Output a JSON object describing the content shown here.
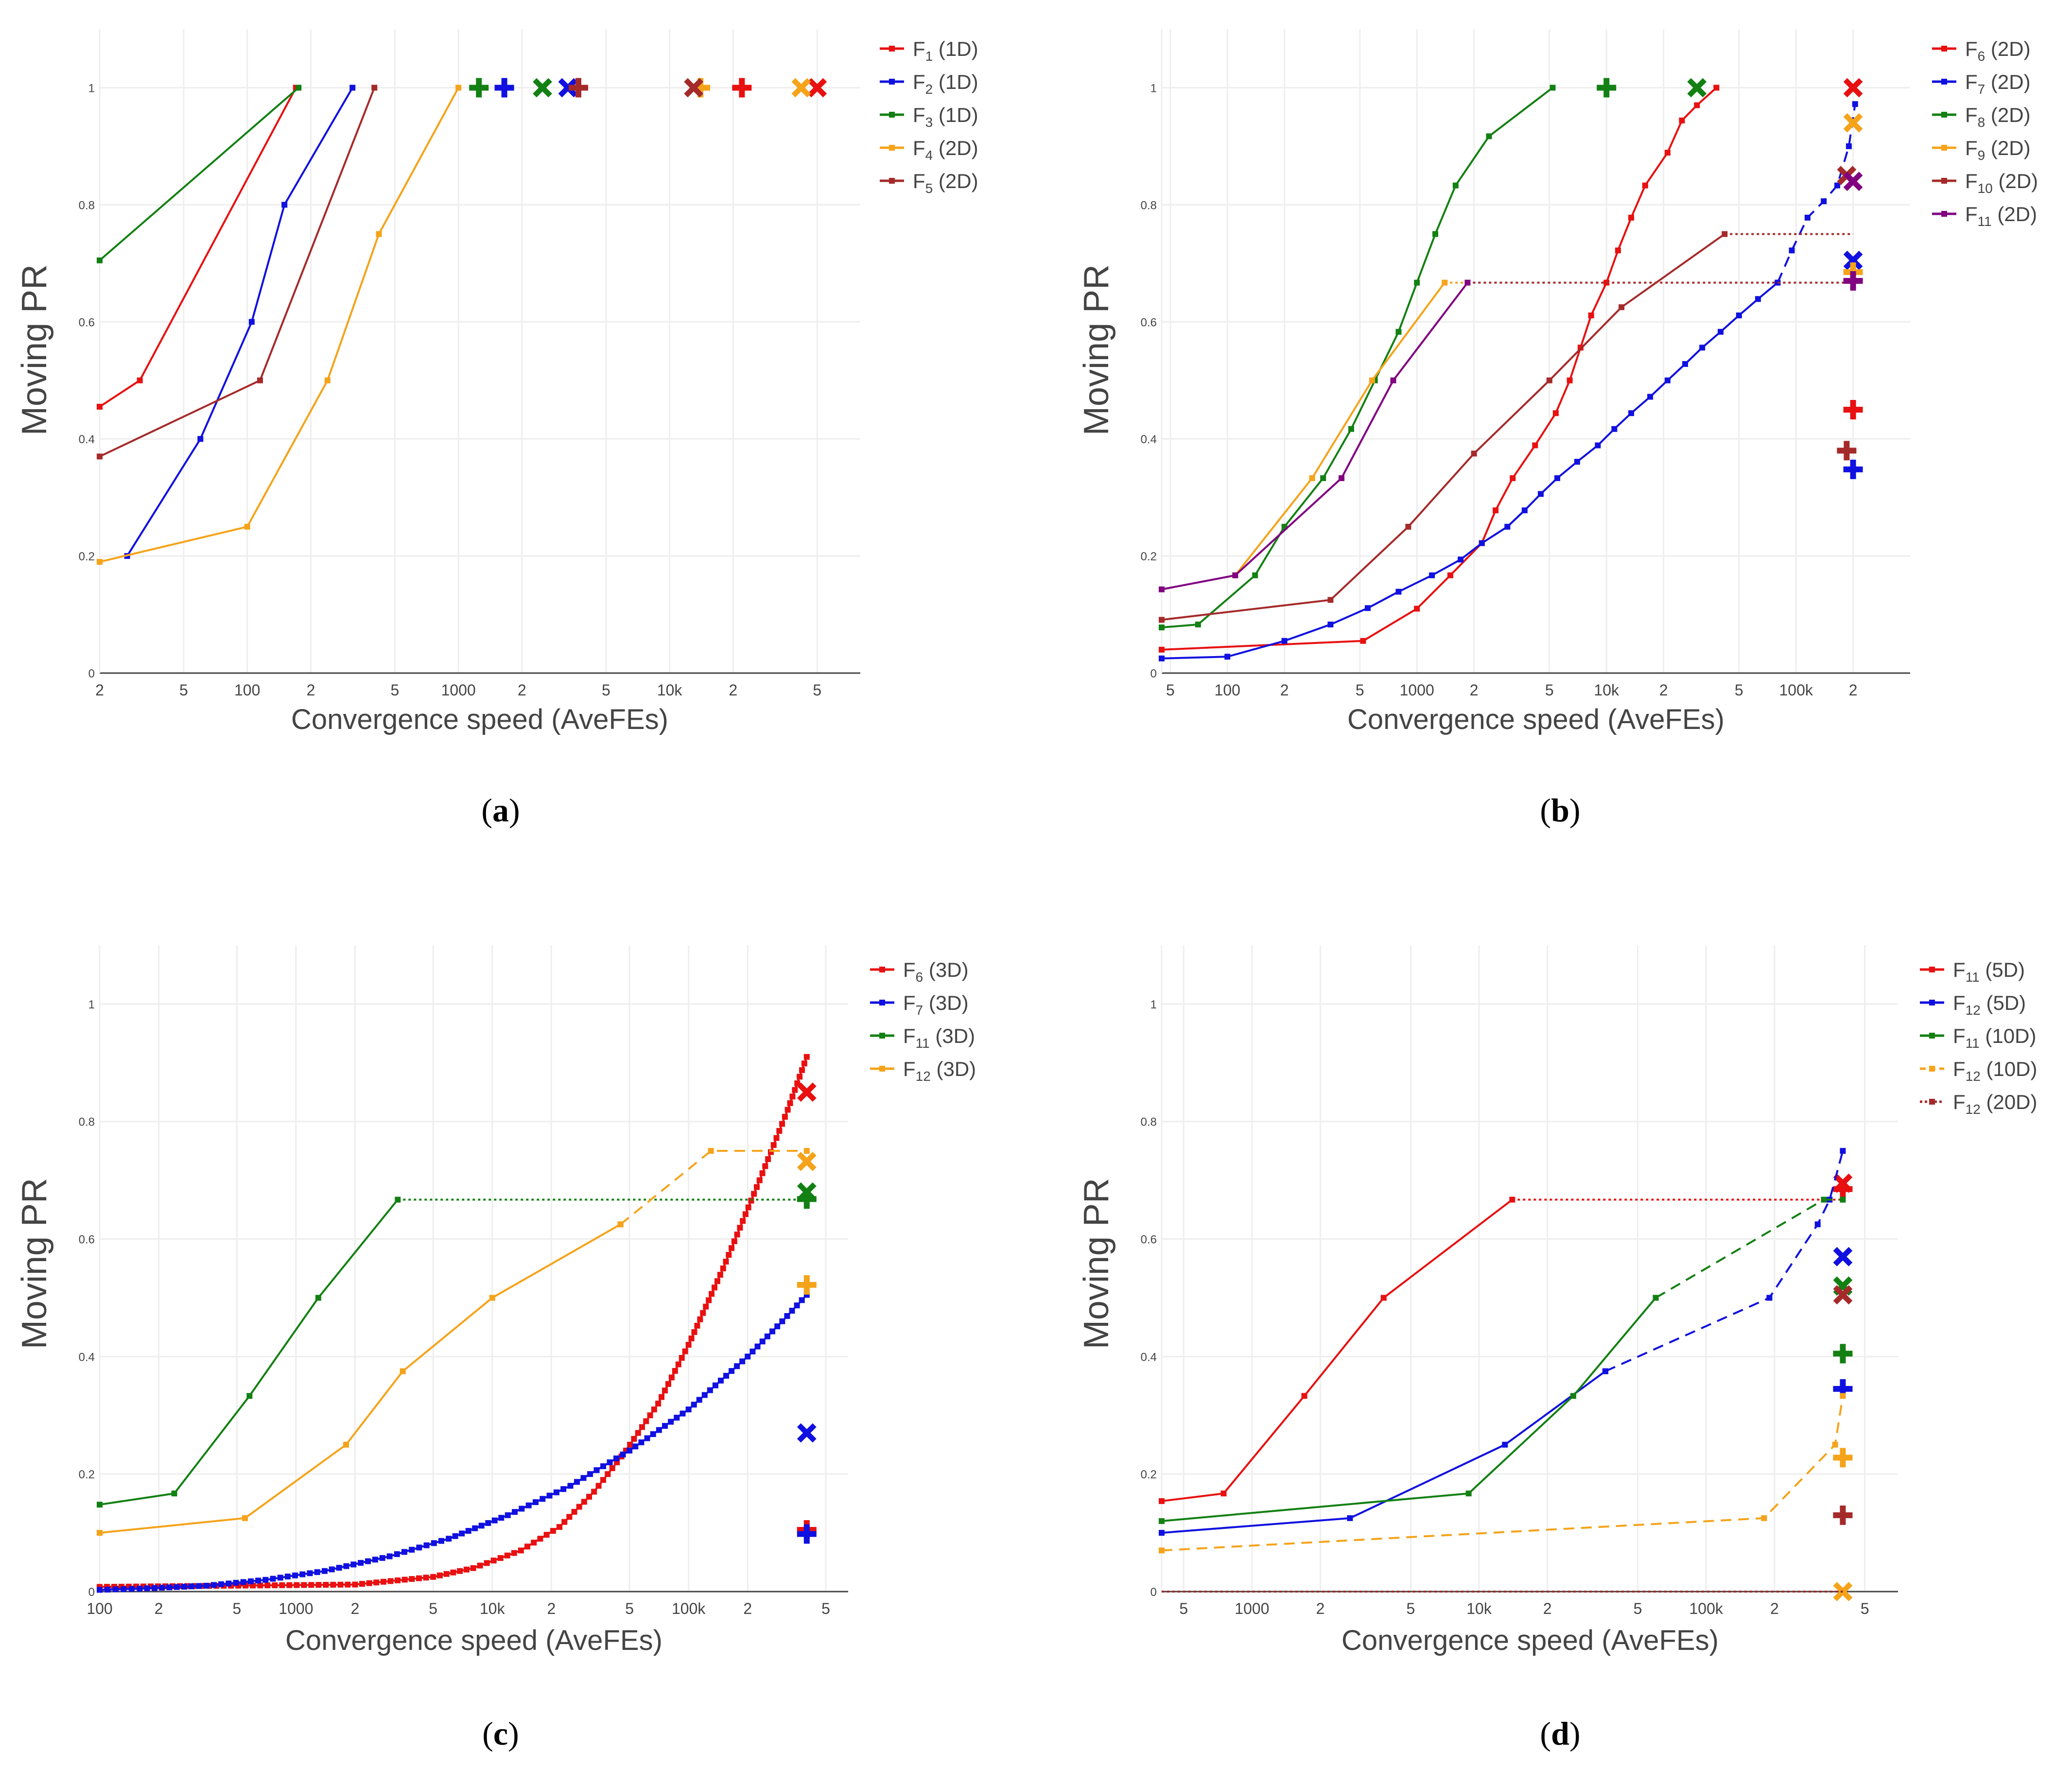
{
  "chart_data": [
    {
      "panel": "(a)",
      "type": "line",
      "xlabel": "Convergence speed (AveFEs)",
      "ylabel": "Moving PR",
      "xscale": "log",
      "xlim": [
        20,
        80000
      ],
      "ylim": [
        0,
        1.1
      ],
      "yticks": [
        "0",
        "0.2",
        "0.4",
        "0.6",
        "0.8",
        "1"
      ],
      "xticks": [
        {
          "v": 20,
          "label": "2"
        },
        {
          "v": 50,
          "label": "5"
        },
        {
          "v": 100,
          "label": "100"
        },
        {
          "v": 200,
          "label": "2"
        },
        {
          "v": 500,
          "label": "5"
        },
        {
          "v": 1000,
          "label": "1000"
        },
        {
          "v": 2000,
          "label": "2"
        },
        {
          "v": 5000,
          "label": "5"
        },
        {
          "v": 10000,
          "label": "10k"
        },
        {
          "v": 20000,
          "label": "2"
        },
        {
          "v": 50000,
          "label": "5"
        }
      ],
      "legend_position": "top-right",
      "series": [
        {
          "name": "F",
          "sub": "1",
          "tag": "(1D)",
          "color": "#e81010",
          "dash": "solid",
          "x": [
            20,
            31,
            170
          ],
          "y": [
            0.455,
            0.5,
            1.0
          ],
          "x_marker": 50000,
          "x_marker_y": 1.0,
          "plus_marker": 22000,
          "plus_marker_y": 1.0
        },
        {
          "name": "F",
          "sub": "2",
          "tag": "(1D)",
          "color": "#1010e0",
          "dash": "solid",
          "x": [
            27,
            60,
            105,
            150,
            315
          ],
          "y": [
            0.2,
            0.4,
            0.6,
            0.8,
            1.0
          ],
          "x_marker": 3300,
          "x_marker_y": 1.0,
          "plus_marker": 1650,
          "plus_marker_y": 1.0
        },
        {
          "name": "F",
          "sub": "3",
          "tag": "(1D)",
          "color": "#138013",
          "dash": "solid",
          "x": [
            20,
            175
          ],
          "y": [
            0.705,
            1.0
          ],
          "x_marker": 2500,
          "x_marker_y": 1.0,
          "plus_marker": 1250,
          "plus_marker_y": 1.0
        },
        {
          "name": "F",
          "sub": "4",
          "tag": "(2D)",
          "color": "#f5a31a",
          "dash": "solid",
          "x": [
            20,
            100,
            240,
            420,
            1000
          ],
          "y": [
            0.19,
            0.25,
            0.5,
            0.75,
            1.0
          ],
          "x_marker": 42000,
          "x_marker_y": 1.0,
          "plus_marker": 14000,
          "plus_marker_y": 1.0
        },
        {
          "name": "F",
          "sub": "5",
          "tag": "(2D)",
          "color": "#a52a2a",
          "dash": "solid",
          "x": [
            20,
            115,
            400
          ],
          "y": [
            0.37,
            0.5,
            1.0
          ],
          "x_marker": 13000,
          "x_marker_y": 1.0,
          "plus_marker": 3700,
          "plus_marker_y": 1.0
        }
      ]
    },
    {
      "panel": "(b)",
      "type": "line",
      "xlabel": "Convergence speed (AveFEs)",
      "ylabel": "Moving PR",
      "xscale": "log",
      "xlim": [
        45,
        400000
      ],
      "ylim": [
        0,
        1.1
      ],
      "yticks": [
        "0",
        "0.2",
        "0.4",
        "0.6",
        "0.8",
        "1"
      ],
      "xticks": [
        {
          "v": 50,
          "label": "5"
        },
        {
          "v": 100,
          "label": "100"
        },
        {
          "v": 200,
          "label": "2"
        },
        {
          "v": 500,
          "label": "5"
        },
        {
          "v": 1000,
          "label": "1000"
        },
        {
          "v": 2000,
          "label": "2"
        },
        {
          "v": 5000,
          "label": "5"
        },
        {
          "v": 10000,
          "label": "10k"
        },
        {
          "v": 20000,
          "label": "2"
        },
        {
          "v": 50000,
          "label": "5"
        },
        {
          "v": 100000,
          "label": "100k"
        },
        {
          "v": 200000,
          "label": "2"
        }
      ],
      "legend_position": "top-right",
      "series": [
        {
          "name": "F",
          "sub": "6",
          "tag": "(2D)",
          "color": "#e81010",
          "dash": "solid",
          "x": [
            45,
            520,
            1000,
            1500,
            2200,
            2600,
            3200,
            4200,
            5400,
            6400,
            7300,
            8300,
            10000,
            11500,
            13500,
            16000,
            21000,
            25000,
            30000,
            38000
          ],
          "y": [
            0.04,
            0.055,
            0.11,
            0.167,
            0.222,
            0.278,
            0.333,
            0.389,
            0.444,
            0.5,
            0.556,
            0.611,
            0.667,
            0.722,
            0.778,
            0.833,
            0.889,
            0.944,
            0.97,
            1.0
          ],
          "x_marker": 200000,
          "x_marker_y": 1.0,
          "plus_marker": 200000,
          "plus_marker_y": 0.45
        },
        {
          "name": "F",
          "sub": "7",
          "tag": "(2D)",
          "color": "#1010e0",
          "dash": "solid",
          "x": [
            45,
            100,
            200,
            350,
            550,
            800,
            1200,
            1700,
            2200,
            3000,
            3700,
            4500,
            5500,
            7000,
            9000,
            11000,
            13500,
            17000,
            21000,
            26000,
            32000,
            40000,
            50000,
            63000,
            80000
          ],
          "y": [
            0.025,
            0.028,
            0.055,
            0.083,
            0.111,
            0.139,
            0.167,
            0.194,
            0.222,
            0.25,
            0.278,
            0.306,
            0.333,
            0.361,
            0.389,
            0.417,
            0.444,
            0.472,
            0.5,
            0.528,
            0.556,
            0.583,
            0.611,
            0.639,
            0.667
          ],
          "ext_x": [
            80000,
            95000,
            115000,
            140000,
            165000,
            190000,
            205000
          ],
          "ext_y": [
            0.667,
            0.722,
            0.778,
            0.806,
            0.833,
            0.9,
            0.972
          ],
          "x_marker": 200000,
          "x_marker_y": 0.705,
          "plus_marker": 200000,
          "plus_marker_y": 0.348
        },
        {
          "name": "F",
          "sub": "8",
          "tag": "(2D)",
          "color": "#138013",
          "dash": "solid",
          "x": [
            45,
            70,
            140,
            200,
            320,
            450,
            600,
            800,
            1000,
            1250,
            1600,
            2400,
            5200
          ],
          "y": [
            0.078,
            0.083,
            0.167,
            0.25,
            0.333,
            0.417,
            0.5,
            0.583,
            0.667,
            0.75,
            0.833,
            0.917,
            1.0
          ],
          "x_marker": 30000,
          "x_marker_y": 1.0,
          "plus_marker": 10000,
          "plus_marker_y": 1.0
        },
        {
          "name": "F",
          "sub": "9",
          "tag": "(2D)",
          "color": "#f5a31a",
          "dash": "solid",
          "x": [
            110,
            280,
            580,
            1400
          ],
          "y": [
            0.167,
            0.333,
            0.5,
            0.667
          ],
          "ext_x": [
            1400,
            1850
          ],
          "ext_y": [
            0.667,
            0.667
          ],
          "x_marker": 200000,
          "x_marker_y": 0.94,
          "plus_marker": 200000,
          "plus_marker_y": 0.685
        },
        {
          "name": "F",
          "sub": "10",
          "tag": "(2D)",
          "color": "#a52a2a",
          "dash": "solid",
          "x": [
            45,
            350,
            900,
            2000,
            5000,
            12000,
            42000
          ],
          "y": [
            0.091,
            0.125,
            0.25,
            0.375,
            0.5,
            0.625,
            0.75
          ],
          "ext_x": [
            42000,
            200000
          ],
          "ext_y": [
            0.75,
            0.75
          ],
          "ext2_x": [
            1850,
            200000
          ],
          "ext2_y": [
            0.667,
            0.667
          ],
          "x_marker": 185000,
          "x_marker_y": 0.85,
          "plus_marker": 185000,
          "plus_marker_y": 0.38
        },
        {
          "name": "F",
          "sub": "11",
          "tag": "(2D)",
          "color": "#800080",
          "dash": "solid",
          "x": [
            45,
            110,
            400,
            750,
            1850
          ],
          "y": [
            0.143,
            0.167,
            0.333,
            0.5,
            0.667
          ],
          "x_marker": 200000,
          "x_marker_y": 0.84,
          "plus_marker": 200000,
          "plus_marker_y": 0.67
        }
      ]
    },
    {
      "panel": "(c)",
      "type": "line",
      "xlabel": "Convergence speed (AveFEs)",
      "ylabel": "Moving PR",
      "xscale": "log",
      "xlim": [
        100,
        650000
      ],
      "ylim": [
        0,
        1.1
      ],
      "yticks": [
        "0",
        "0.2",
        "0.4",
        "0.6",
        "0.8",
        "1"
      ],
      "xticks": [
        {
          "v": 100,
          "label": "100"
        },
        {
          "v": 200,
          "label": "2"
        },
        {
          "v": 500,
          "label": "5"
        },
        {
          "v": 1000,
          "label": "1000"
        },
        {
          "v": 2000,
          "label": "2"
        },
        {
          "v": 5000,
          "label": "5"
        },
        {
          "v": 10000,
          "label": "10k"
        },
        {
          "v": 20000,
          "label": "2"
        },
        {
          "v": 50000,
          "label": "5"
        },
        {
          "v": 100000,
          "label": "100k"
        },
        {
          "v": 200000,
          "label": "2"
        },
        {
          "v": 500000,
          "label": "5"
        }
      ],
      "legend_position": "top-right",
      "series": [
        {
          "name": "F",
          "sub": "6",
          "tag": "(3D)",
          "color": "#e81010",
          "dash": "solid",
          "x": [
            100,
            2000,
            5000,
            8000,
            14000,
            22000,
            33000,
            48000,
            70000,
            100000,
            150000,
            230000,
            320000,
            400000
          ],
          "y": [
            0.008,
            0.012,
            0.025,
            0.04,
            0.07,
            0.11,
            0.17,
            0.24,
            0.32,
            0.42,
            0.55,
            0.7,
            0.82,
            0.91
          ],
          "dense": true,
          "x_marker": 400000,
          "x_marker_y": 0.85,
          "plus_marker": 400000,
          "plus_marker_y": 0.105
        },
        {
          "name": "F",
          "sub": "7",
          "tag": "(3D)",
          "color": "#1010e0",
          "dash": "solid",
          "x": [
            100,
            160,
            350,
            700,
            1400,
            3000,
            6000,
            12000,
            25000,
            50000,
            100000,
            200000,
            300000,
            400000
          ],
          "y": [
            0.003,
            0.005,
            0.01,
            0.02,
            0.035,
            0.06,
            0.09,
            0.13,
            0.18,
            0.24,
            0.31,
            0.4,
            0.46,
            0.505
          ],
          "dense": true,
          "x_marker": 400000,
          "x_marker_y": 0.27,
          "plus_marker": 400000,
          "plus_marker_y": 0.098
        },
        {
          "name": "F",
          "sub": "11",
          "tag": "(3D)",
          "color": "#138013",
          "dash": "solid",
          "x": [
            100,
            240,
            580,
            1300,
            3300
          ],
          "y": [
            0.148,
            0.167,
            0.333,
            0.5,
            0.667
          ],
          "ext_x": [
            3300,
            400000
          ],
          "ext_y": [
            0.667,
            0.667
          ],
          "x_marker": 400000,
          "x_marker_y": 0.68,
          "plus_marker": 400000,
          "plus_marker_y": 0.668
        },
        {
          "name": "F",
          "sub": "12",
          "tag": "(3D)",
          "color": "#f5a31a",
          "dash": "solid",
          "x": [
            100,
            550,
            1800,
            3500,
            10000,
            45000
          ],
          "y": [
            0.1,
            0.125,
            0.25,
            0.375,
            0.5,
            0.625
          ],
          "ext_x": [
            45000,
            130000,
            400000
          ],
          "ext_y": [
            0.625,
            0.75,
            0.75
          ],
          "x_marker": 400000,
          "x_marker_y": 0.732,
          "plus_marker": 400000,
          "plus_marker_y": 0.522
        }
      ]
    },
    {
      "panel": "(d)",
      "type": "line",
      "xlabel": "Convergence speed (AveFEs)",
      "ylabel": "Moving PR",
      "xscale": "log",
      "xlim": [
        400,
        700000
      ],
      "ylim": [
        0,
        1.1
      ],
      "yticks": [
        "0",
        "0.2",
        "0.4",
        "0.6",
        "0.8",
        "1"
      ],
      "xticks": [
        {
          "v": 500,
          "label": "5"
        },
        {
          "v": 1000,
          "label": "1000"
        },
        {
          "v": 2000,
          "label": "2"
        },
        {
          "v": 5000,
          "label": "5"
        },
        {
          "v": 10000,
          "label": "10k"
        },
        {
          "v": 20000,
          "label": "2"
        },
        {
          "v": 50000,
          "label": "5"
        },
        {
          "v": 100000,
          "label": "100k"
        },
        {
          "v": 200000,
          "label": "2"
        },
        {
          "v": 500000,
          "label": "5"
        }
      ],
      "legend_position": "top-right",
      "series": [
        {
          "name": "F",
          "sub": "11",
          "tag": "(5D)",
          "color": "#e81010",
          "dash": "solid",
          "x": [
            400,
            750,
            1700,
            3800,
            14000
          ],
          "y": [
            0.154,
            0.167,
            0.333,
            0.5,
            0.667
          ],
          "ext_x": [
            14000,
            400000
          ],
          "ext_y": [
            0.667,
            0.667
          ],
          "x_marker": 400000,
          "x_marker_y": 0.695,
          "plus_marker": 400000,
          "plus_marker_y": 0.685
        },
        {
          "name": "F",
          "sub": "12",
          "tag": "(5D)",
          "color": "#1010e0",
          "dash": "solid",
          "x": [
            400,
            2700,
            13000,
            36000
          ],
          "y": [
            0.1,
            0.125,
            0.25,
            0.375
          ],
          "ext_x": [
            36000,
            190000,
            310000,
            350000,
            400000
          ],
          "ext_y": [
            0.375,
            0.5,
            0.625,
            0.667,
            0.75
          ],
          "x_marker": 400000,
          "x_marker_y": 0.57,
          "plus_marker": 400000,
          "plus_marker_y": 0.345
        },
        {
          "name": "F",
          "sub": "11",
          "tag": "(10D)",
          "color": "#138013",
          "dash": "solid",
          "x": [
            400,
            9000,
            26000,
            60000
          ],
          "y": [
            0.12,
            0.167,
            0.333,
            0.5
          ],
          "ext_x": [
            60000,
            330000,
            400000
          ],
          "ext_y": [
            0.5,
            0.667,
            0.667
          ],
          "x_marker": 400000,
          "x_marker_y": 0.52,
          "plus_marker": 400000,
          "plus_marker_y": 0.405
        },
        {
          "name": "F",
          "sub": "12",
          "tag": "(10D)",
          "color": "#f5a31a",
          "dash": "dashed",
          "x": [
            400,
            180000,
            370000,
            400000
          ],
          "y": [
            0.07,
            0.125,
            0.25,
            0.333
          ],
          "x_marker": 400000,
          "x_marker_y": 0.0,
          "plus_marker": 400000,
          "plus_marker_y": 0.228
        },
        {
          "name": "F",
          "sub": "12",
          "tag": "(20D)",
          "color": "#a52a2a",
          "dash": "dotted",
          "x": [
            400,
            400000
          ],
          "y": [
            0.0,
            0.0
          ],
          "x_marker": 400000,
          "x_marker_y": 0.505,
          "plus_marker": 400000,
          "plus_marker_y": 0.13
        }
      ]
    }
  ]
}
